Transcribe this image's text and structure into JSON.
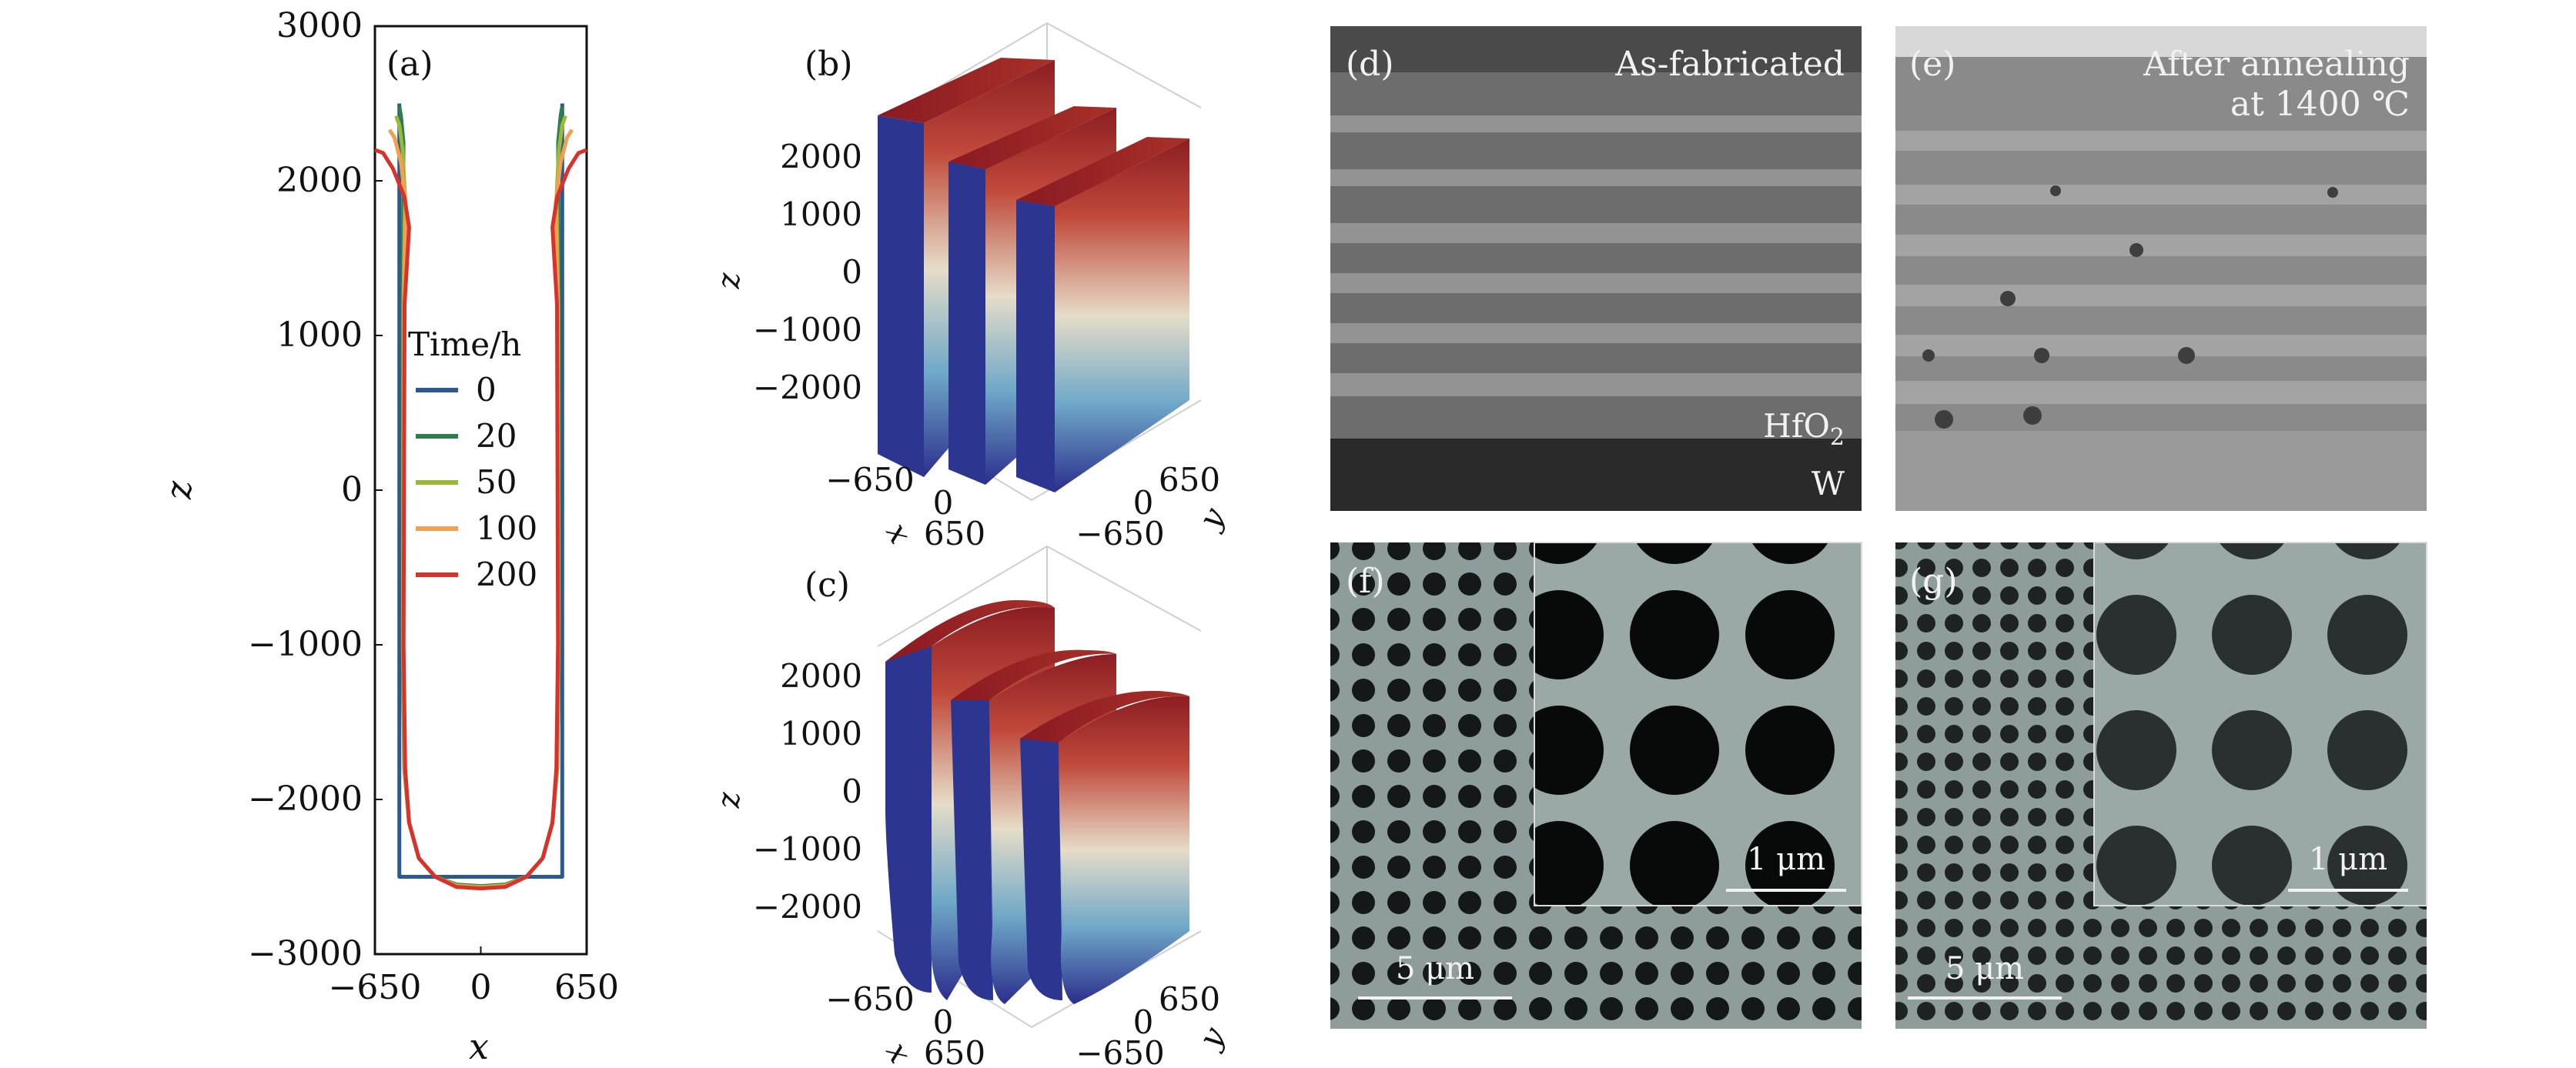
{
  "chart_data": [
    {
      "panel": "(a)",
      "type": "line",
      "xlabel": "x",
      "ylabel": "z",
      "xlim": [
        -650,
        650
      ],
      "ylim": [
        -3000,
        3000
      ],
      "x_ticks": [
        "−650",
        "0",
        "650"
      ],
      "y_ticks": [
        "−3000",
        "−2000",
        "−1000",
        "0",
        "1000",
        "2000",
        "3000"
      ],
      "legend_title": "Time/h",
      "legend_position": "center-left",
      "grid": false,
      "series": [
        {
          "name": "0",
          "color": "#2c5a8c",
          "x": [
            -500,
            -500,
            500,
            500
          ],
          "y": [
            2500,
            -2500,
            -2500,
            2500
          ]
        },
        {
          "name": "20",
          "color": "#2e7d4f",
          "x": [
            -500,
            -490,
            -475,
            -475,
            -480,
            -480,
            -470,
            -440,
            -380,
            -280,
            -150,
            0,
            150,
            280,
            380,
            440,
            470,
            480,
            480,
            475,
            475,
            490,
            500
          ],
          "y": [
            2480,
            2420,
            2250,
            2000,
            1200,
            -1000,
            -1800,
            -2150,
            -2380,
            -2500,
            -2550,
            -2560,
            -2550,
            -2500,
            -2380,
            -2150,
            -1800,
            -1000,
            1200,
            2000,
            2250,
            2420,
            2480
          ]
        },
        {
          "name": "50",
          "color": "#9ab93b",
          "x": [
            -520,
            -500,
            -480,
            -465,
            -475,
            -478,
            -468,
            -440,
            -380,
            -280,
            -150,
            0,
            150,
            280,
            380,
            440,
            468,
            478,
            475,
            465,
            480,
            500,
            520
          ],
          "y": [
            2420,
            2360,
            2200,
            1900,
            1200,
            -1000,
            -1800,
            -2150,
            -2380,
            -2500,
            -2555,
            -2565,
            -2555,
            -2500,
            -2380,
            -2150,
            -1800,
            -1000,
            1200,
            1900,
            2200,
            2360,
            2420
          ]
        },
        {
          "name": "100",
          "color": "#f0a050",
          "x": [
            -560,
            -530,
            -490,
            -460,
            -472,
            -476,
            -466,
            -440,
            -380,
            -280,
            -150,
            0,
            150,
            280,
            380,
            440,
            466,
            476,
            472,
            460,
            490,
            530,
            560
          ],
          "y": [
            2330,
            2280,
            2120,
            1850,
            1200,
            -1000,
            -1800,
            -2150,
            -2380,
            -2500,
            -2560,
            -2570,
            -2560,
            -2500,
            -2380,
            -2150,
            -1800,
            -1000,
            1200,
            1850,
            2120,
            2280,
            2330
          ]
        },
        {
          "name": "200",
          "color": "#d9322b",
          "x": [
            -650,
            -600,
            -540,
            -470,
            -440,
            -468,
            -474,
            -464,
            -440,
            -380,
            -280,
            -150,
            0,
            150,
            280,
            380,
            440,
            464,
            474,
            468,
            440,
            470,
            540,
            600,
            650
          ],
          "y": [
            2200,
            2180,
            2080,
            1900,
            1700,
            1200,
            -1000,
            -1800,
            -2150,
            -2380,
            -2500,
            -2565,
            -2575,
            -2565,
            -2500,
            -2380,
            -2150,
            -1800,
            -1000,
            1200,
            1700,
            1900,
            2080,
            2180,
            2200
          ]
        }
      ]
    },
    {
      "panel": "(b)",
      "type": "surface",
      "xlabel": "x",
      "ylabel": "y",
      "zlabel": "z",
      "z_ticks": [
        "2000",
        "1000",
        "0",
        "−1000",
        "−2000"
      ],
      "x_ticks": [
        "−650",
        "0",
        "650"
      ],
      "y_ticks": [
        "650",
        "0",
        "−650"
      ],
      "colormap": [
        "#2b2e8c",
        "#6fa8c8",
        "#e8dcc8",
        "#b03a2e",
        "#8c1d23"
      ]
    },
    {
      "panel": "(c)",
      "type": "surface",
      "xlabel": "x",
      "ylabel": "y",
      "zlabel": "z",
      "z_ticks": [
        "2000",
        "1000",
        "0",
        "−1000",
        "−2000"
      ],
      "x_ticks": [
        "−650",
        "0",
        "650"
      ],
      "y_ticks": [
        "650",
        "0",
        "−650"
      ],
      "colormap": [
        "#2b2e8c",
        "#6fa8c8",
        "#e8dcc8",
        "#b03a2e",
        "#8c1d23"
      ]
    }
  ],
  "images": {
    "d": {
      "label": "(d)",
      "caption": "As-fabricated",
      "layer_label": "HfO",
      "layer_sub": "2",
      "substrate_label": "W"
    },
    "e": {
      "label": "(e)",
      "caption_line1": "After annealing",
      "caption_line2": "at 1400 ℃"
    },
    "f": {
      "label": "(f)",
      "scale_main": "5 μm",
      "scale_inset": "1 μm"
    },
    "g": {
      "label": "(g)",
      "scale_main": "5 μm",
      "scale_inset": "1 μm"
    }
  }
}
